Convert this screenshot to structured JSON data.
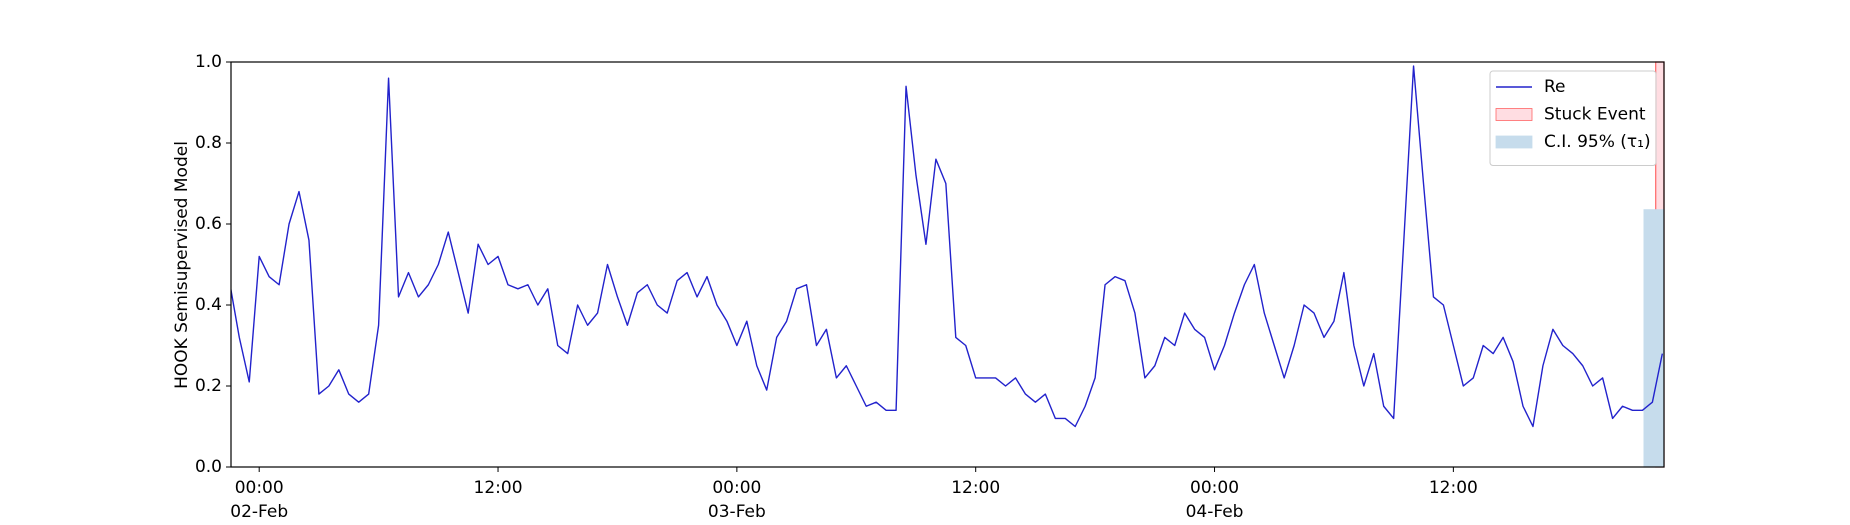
{
  "chart_data": {
    "type": "line",
    "ylabel": "HOOK Semisupervised Model",
    "xlim": [
      "1900-02-01T22:35",
      "1900-02-04T22:35"
    ],
    "ylim": [
      0,
      1
    ],
    "yticks": [
      {
        "value": 0,
        "label": "0.0"
      },
      0.2,
      0.4,
      0.6,
      0.8,
      {
        "value": 1,
        "label": "1.0"
      }
    ],
    "xticks": [
      {
        "value": "1900-02-02T00:00",
        "label": "00:00\n02-Feb\n1900"
      },
      {
        "value": "1900-02-02T12:00",
        "label": "12:00"
      },
      {
        "value": "1900-02-03T00:00",
        "label": "00:00\n03-Feb"
      },
      {
        "value": "1900-02-03T12:00",
        "label": "12:00"
      },
      {
        "value": "1900-02-04T00:00",
        "label": "00:00\n04-Feb"
      },
      {
        "value": "1900-02-04T12:00",
        "label": "12:00"
      }
    ],
    "legend": "upper right",
    "series": [
      {
        "name": "Re",
        "color": "#2222cc",
        "x": [
          "1900-02-01T22:30",
          "1900-02-01T23:00",
          "1900-02-01T23:30",
          "1900-02-02T00:00",
          "1900-02-02T00:30",
          "1900-02-02T01:00",
          "1900-02-02T01:30",
          "1900-02-02T02:00",
          "1900-02-02T02:30",
          "1900-02-02T03:00",
          "1900-02-02T03:30",
          "1900-02-02T04:00",
          "1900-02-02T04:30",
          "1900-02-02T05:00",
          "1900-02-02T05:30",
          "1900-02-02T06:00",
          "1900-02-02T06:30",
          "1900-02-02T07:00",
          "1900-02-02T07:30",
          "1900-02-02T08:00",
          "1900-02-02T08:30",
          "1900-02-02T09:00",
          "1900-02-02T09:30",
          "1900-02-02T10:00",
          "1900-02-02T10:30",
          "1900-02-02T11:00",
          "1900-02-02T11:30",
          "1900-02-02T12:00",
          "1900-02-02T12:30",
          "1900-02-02T13:00",
          "1900-02-02T13:30",
          "1900-02-02T14:00",
          "1900-02-02T14:30",
          "1900-02-02T15:00",
          "1900-02-02T15:30",
          "1900-02-02T16:00",
          "1900-02-02T16:30",
          "1900-02-02T17:00",
          "1900-02-02T17:30",
          "1900-02-02T18:00",
          "1900-02-02T18:30",
          "1900-02-02T19:00",
          "1900-02-02T19:30",
          "1900-02-02T20:00",
          "1900-02-02T20:30",
          "1900-02-02T21:00",
          "1900-02-02T21:30",
          "1900-02-02T22:00",
          "1900-02-02T22:30",
          "1900-02-02T23:00",
          "1900-02-02T23:30",
          "1900-02-03T00:00",
          "1900-02-03T00:30",
          "1900-02-03T01:00",
          "1900-02-03T01:30",
          "1900-02-03T02:00",
          "1900-02-03T02:30",
          "1900-02-03T03:00",
          "1900-02-03T03:30",
          "1900-02-03T04:00",
          "1900-02-03T04:30",
          "1900-02-03T05:00",
          "1900-02-03T05:30",
          "1900-02-03T06:00",
          "1900-02-03T06:30",
          "1900-02-03T07:00",
          "1900-02-03T07:30",
          "1900-02-03T08:00",
          "1900-02-03T08:30",
          "1900-02-03T09:00",
          "1900-02-03T09:30",
          "1900-02-03T10:00",
          "1900-02-03T10:30",
          "1900-02-03T11:00",
          "1900-02-03T11:30",
          "1900-02-03T12:00",
          "1900-02-03T12:30",
          "1900-02-03T13:00",
          "1900-02-03T13:30",
          "1900-02-03T14:00",
          "1900-02-03T14:30",
          "1900-02-03T15:00",
          "1900-02-03T15:30",
          "1900-02-03T16:00",
          "1900-02-03T16:30",
          "1900-02-03T17:00",
          "1900-02-03T17:30",
          "1900-02-03T18:00",
          "1900-02-03T18:30",
          "1900-02-03T19:00",
          "1900-02-03T19:30",
          "1900-02-03T20:00",
          "1900-02-03T20:30",
          "1900-02-03T21:00",
          "1900-02-03T21:30",
          "1900-02-03T22:00",
          "1900-02-03T22:30",
          "1900-02-03T23:00",
          "1900-02-03T23:30",
          "1900-02-04T00:00",
          "1900-02-04T00:30",
          "1900-02-04T01:00",
          "1900-02-04T01:30",
          "1900-02-04T02:00",
          "1900-02-04T02:30",
          "1900-02-04T03:00",
          "1900-02-04T03:30",
          "1900-02-04T04:00",
          "1900-02-04T04:30",
          "1900-02-04T05:00",
          "1900-02-04T05:30",
          "1900-02-04T06:00",
          "1900-02-04T06:30",
          "1900-02-04T07:00",
          "1900-02-04T07:30",
          "1900-02-04T08:00",
          "1900-02-04T08:30",
          "1900-02-04T09:00",
          "1900-02-04T09:30",
          "1900-02-04T10:00",
          "1900-02-04T10:30",
          "1900-02-04T11:00",
          "1900-02-04T11:30",
          "1900-02-04T12:00",
          "1900-02-04T12:30",
          "1900-02-04T13:00",
          "1900-02-04T13:30",
          "1900-02-04T14:00",
          "1900-02-04T14:30",
          "1900-02-04T15:00",
          "1900-02-04T15:30",
          "1900-02-04T16:00",
          "1900-02-04T16:30",
          "1900-02-04T17:00",
          "1900-02-04T17:30",
          "1900-02-04T18:00",
          "1900-02-04T18:30",
          "1900-02-04T19:00",
          "1900-02-04T19:30",
          "1900-02-04T20:00",
          "1900-02-04T20:30",
          "1900-02-04T21:00",
          "1900-02-04T21:30",
          "1900-02-04T22:00",
          "1900-02-04T22:30"
        ],
        "values": [
          0.46,
          0.32,
          0.21,
          0.52,
          0.47,
          0.45,
          0.6,
          0.68,
          0.56,
          0.18,
          0.2,
          0.24,
          0.18,
          0.16,
          0.18,
          0.35,
          0.96,
          0.42,
          0.48,
          0.42,
          0.45,
          0.5,
          0.58,
          0.48,
          0.38,
          0.55,
          0.5,
          0.52,
          0.45,
          0.44,
          0.45,
          0.4,
          0.44,
          0.3,
          0.28,
          0.4,
          0.35,
          0.38,
          0.5,
          0.42,
          0.35,
          0.43,
          0.45,
          0.4,
          0.38,
          0.46,
          0.48,
          0.42,
          0.47,
          0.4,
          0.36,
          0.3,
          0.36,
          0.25,
          0.19,
          0.32,
          0.36,
          0.44,
          0.45,
          0.3,
          0.34,
          0.22,
          0.25,
          0.2,
          0.15,
          0.16,
          0.14,
          0.14,
          0.94,
          0.72,
          0.55,
          0.76,
          0.7,
          0.32,
          0.3,
          0.22,
          0.22,
          0.22,
          0.2,
          0.22,
          0.18,
          0.16,
          0.18,
          0.12,
          0.12,
          0.1,
          0.15,
          0.22,
          0.45,
          0.47,
          0.46,
          0.38,
          0.22,
          0.25,
          0.32,
          0.3,
          0.38,
          0.34,
          0.32,
          0.24,
          0.3,
          0.38,
          0.45,
          0.5,
          0.38,
          0.3,
          0.22,
          0.3,
          0.4,
          0.38,
          0.32,
          0.36,
          0.48,
          0.3,
          0.2,
          0.28,
          0.15,
          0.12,
          0.55,
          0.99,
          0.7,
          0.42,
          0.4,
          0.3,
          0.2,
          0.22,
          0.3,
          0.28,
          0.32,
          0.26,
          0.15,
          0.1,
          0.25,
          0.34,
          0.3,
          0.28,
          0.25,
          0.2,
          0.22,
          0.12,
          0.15,
          0.14,
          0.14,
          0.16,
          0.28
        ]
      }
    ],
    "spans": [
      {
        "name": "Stuck Event",
        "color": "#ffdde2",
        "edgecolor": "#ff6666",
        "x": [
          "1900-02-04T22:10",
          "1900-02-04T22:35"
        ],
        "y": [
          0,
          1
        ]
      },
      {
        "name": "C.I. 95% (τ₁)",
        "color": "#c6dcec",
        "edgecolor": "#c6dcec",
        "x": [
          "1900-02-04T21:35",
          "1900-02-04T22:35"
        ],
        "y": [
          0,
          0.635
        ]
      }
    ]
  }
}
